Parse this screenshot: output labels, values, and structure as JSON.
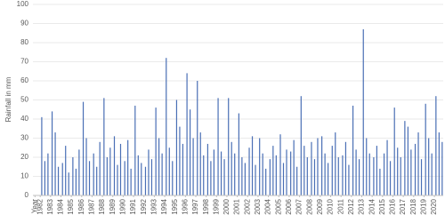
{
  "chart_data": {
    "type": "bar",
    "y_label": "Rainfall in mm",
    "color": "#4a6fb5",
    "grid": true,
    "ylim": [
      0,
      100
    ],
    "yticks": [
      0,
      10,
      20,
      30,
      40,
      50,
      60,
      70,
      80,
      90,
      100
    ],
    "xlim": [
      1981.3,
      2020.85
    ],
    "xticks": [
      {
        "value": 1981.5,
        "label": "Year"
      },
      1982,
      1983,
      1984,
      1985,
      1986,
      1987,
      1988,
      1989,
      1990,
      1991,
      1992,
      1993,
      1994,
      1995,
      1996,
      1997,
      1998,
      1999,
      2000,
      2001,
      2002,
      2003,
      2004,
      2005,
      2006,
      2007,
      2008,
      2009,
      2010,
      2011,
      2012,
      2013,
      2014,
      2015,
      2016,
      2017,
      2018,
      2019,
      2020
    ],
    "x": [
      1982.15,
      1982.45,
      1982.75,
      1983.15,
      1983.45,
      1983.75,
      1984.15,
      1984.45,
      1984.75,
      1985.15,
      1985.45,
      1985.75,
      1986.15,
      1986.45,
      1986.75,
      1987.15,
      1987.45,
      1987.75,
      1988.15,
      1988.45,
      1988.75,
      1989.15,
      1989.45,
      1989.75,
      1990.15,
      1990.45,
      1990.75,
      1991.15,
      1991.45,
      1991.75,
      1992.15,
      1992.45,
      1992.75,
      1993.15,
      1993.45,
      1993.75,
      1994.15,
      1994.45,
      1994.75,
      1995.15,
      1995.45,
      1995.75,
      1996.15,
      1996.45,
      1996.75,
      1997.15,
      1997.45,
      1997.75,
      1998.15,
      1998.45,
      1998.75,
      1999.15,
      1999.45,
      1999.75,
      2000.15,
      2000.45,
      2000.75,
      2001.15,
      2001.45,
      2001.75,
      2002.15,
      2002.45,
      2002.75,
      2003.15,
      2003.45,
      2003.75,
      2004.15,
      2004.45,
      2004.75,
      2005.15,
      2005.45,
      2005.75,
      2006.15,
      2006.45,
      2006.75,
      2007.15,
      2007.45,
      2007.75,
      2008.15,
      2008.45,
      2008.75,
      2009.15,
      2009.45,
      2009.75,
      2010.15,
      2010.45,
      2010.75,
      2011.15,
      2011.45,
      2011.75,
      2012.15,
      2012.45,
      2012.75,
      2013.15,
      2013.45,
      2013.75,
      2014.15,
      2014.45,
      2014.75,
      2015.15,
      2015.45,
      2015.75,
      2016.15,
      2016.45,
      2016.75,
      2017.15,
      2017.45,
      2017.75,
      2018.15,
      2018.45,
      2018.75,
      2019.15,
      2019.45,
      2019.75,
      2020.15,
      2020.45,
      2020.75
    ],
    "values": [
      41,
      18,
      22,
      44,
      33,
      15,
      17,
      26,
      12,
      20,
      14,
      24,
      49,
      30,
      18,
      22,
      15,
      28,
      51,
      20,
      25,
      31,
      16,
      27,
      18,
      29,
      14,
      47,
      21,
      17,
      15,
      24,
      19,
      46,
      30,
      22,
      72,
      25,
      18,
      50,
      36,
      27,
      64,
      45,
      30,
      60,
      33,
      21,
      27,
      18,
      24,
      51,
      23,
      19,
      51,
      28,
      22,
      43,
      20,
      17,
      25,
      31,
      16,
      30,
      22,
      14,
      19,
      26,
      21,
      32,
      17,
      24,
      23,
      29,
      15,
      52,
      26,
      20,
      28,
      19,
      30,
      31,
      22,
      17,
      26,
      33,
      20,
      21,
      28,
      16,
      47,
      24,
      19,
      87,
      30,
      22,
      20,
      26,
      14,
      22,
      29,
      18,
      46,
      25,
      20,
      39,
      36,
      24,
      27,
      33,
      19,
      48,
      30,
      22,
      52,
      33,
      28
    ]
  }
}
